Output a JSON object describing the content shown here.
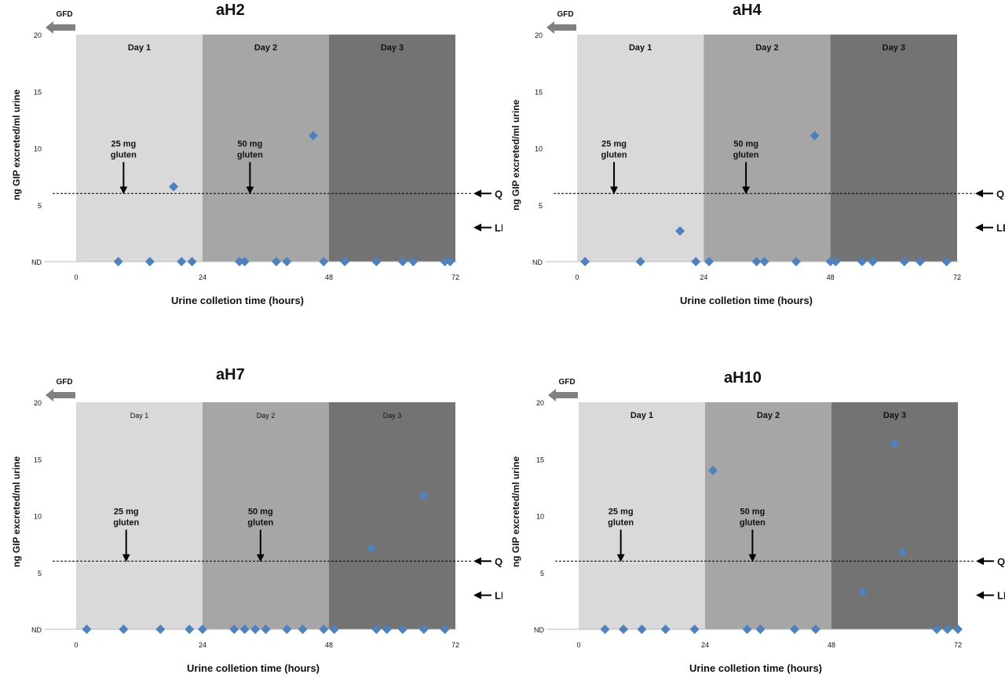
{
  "figure": {
    "ylabel": "ng GIP excreted/ml urine",
    "xlabel": "Urine colletion time (hours)",
    "gfd_label": "GFD",
    "ql_label": "QL",
    "ldt_label": "LDT",
    "day_labels": [
      "Day 1",
      "Day 2",
      "Day 3"
    ],
    "dose1": [
      "25 mg",
      "gluten"
    ],
    "dose2": [
      "50 mg",
      "gluten"
    ],
    "y_ticks": [
      "ND",
      "5",
      "10",
      "15",
      "20"
    ],
    "x_ticks": [
      "0",
      "24",
      "48",
      "72"
    ],
    "colors": {
      "day1": "#d9d9d9",
      "day2": "#a6a6a6",
      "day3": "#737373",
      "marker": "#4f81bd",
      "arrow_gfd": "#808080"
    }
  },
  "chart_data": [
    {
      "type": "scatter",
      "title": "aH2",
      "xlim": [
        0,
        72
      ],
      "ylim": [
        0,
        20
      ],
      "ql_y": 6,
      "ldt_y": 3,
      "dose_x": [
        9,
        33
      ],
      "points": [
        [
          8,
          0
        ],
        [
          14,
          0
        ],
        [
          20,
          0
        ],
        [
          22,
          0
        ],
        [
          31,
          0
        ],
        [
          32,
          0
        ],
        [
          38,
          0
        ],
        [
          40,
          0
        ],
        [
          47,
          0
        ],
        [
          51,
          0
        ],
        [
          57,
          0
        ],
        [
          62,
          0
        ],
        [
          64,
          0
        ],
        [
          70,
          0
        ],
        [
          71,
          0
        ],
        [
          18.5,
          6.6
        ],
        [
          45,
          11.1
        ]
      ]
    },
    {
      "type": "scatter",
      "title": "aH4",
      "xlim": [
        0,
        72
      ],
      "ylim": [
        0,
        20
      ],
      "ql_y": 6,
      "ldt_y": 3,
      "dose_x": [
        7,
        32
      ],
      "points": [
        [
          1.5,
          0
        ],
        [
          12,
          0
        ],
        [
          22.5,
          0
        ],
        [
          25,
          0
        ],
        [
          34,
          0
        ],
        [
          35.5,
          0
        ],
        [
          41.5,
          0
        ],
        [
          48,
          0
        ],
        [
          49,
          0
        ],
        [
          54,
          0
        ],
        [
          56,
          0
        ],
        [
          62,
          0
        ],
        [
          65,
          0
        ],
        [
          70,
          0
        ],
        [
          19.5,
          2.7
        ],
        [
          45,
          11.1
        ]
      ]
    },
    {
      "type": "scatter",
      "title": "aH7",
      "xlim": [
        0,
        72
      ],
      "ylim": [
        0,
        20
      ],
      "ql_y": 6,
      "ldt_y": 3,
      "dose_x": [
        9.5,
        35
      ],
      "points": [
        [
          2,
          0
        ],
        [
          9,
          0
        ],
        [
          16,
          0
        ],
        [
          21.5,
          0
        ],
        [
          24,
          0
        ],
        [
          30,
          0
        ],
        [
          32,
          0
        ],
        [
          34,
          0
        ],
        [
          36,
          0
        ],
        [
          40,
          0
        ],
        [
          43,
          0
        ],
        [
          47,
          0
        ],
        [
          49,
          0
        ],
        [
          57,
          0
        ],
        [
          59,
          0
        ],
        [
          62,
          0
        ],
        [
          66,
          0
        ],
        [
          70,
          0
        ],
        [
          56,
          7.1
        ],
        [
          66,
          11.8
        ]
      ]
    },
    {
      "type": "scatter",
      "title": "aH10",
      "xlim": [
        0,
        72
      ],
      "ylim": [
        0,
        20
      ],
      "ql_y": 6,
      "ldt_y": 3,
      "dose_x": [
        8,
        33
      ],
      "points": [
        [
          5,
          0
        ],
        [
          8.5,
          0
        ],
        [
          12,
          0
        ],
        [
          16.5,
          0
        ],
        [
          22,
          0
        ],
        [
          32,
          0
        ],
        [
          34.5,
          0
        ],
        [
          41,
          0
        ],
        [
          45,
          0
        ],
        [
          68,
          0
        ],
        [
          70,
          0
        ],
        [
          72,
          0
        ],
        [
          25.5,
          14
        ],
        [
          54,
          3.3
        ],
        [
          60,
          16.4
        ],
        [
          61.5,
          6.8
        ]
      ]
    }
  ]
}
